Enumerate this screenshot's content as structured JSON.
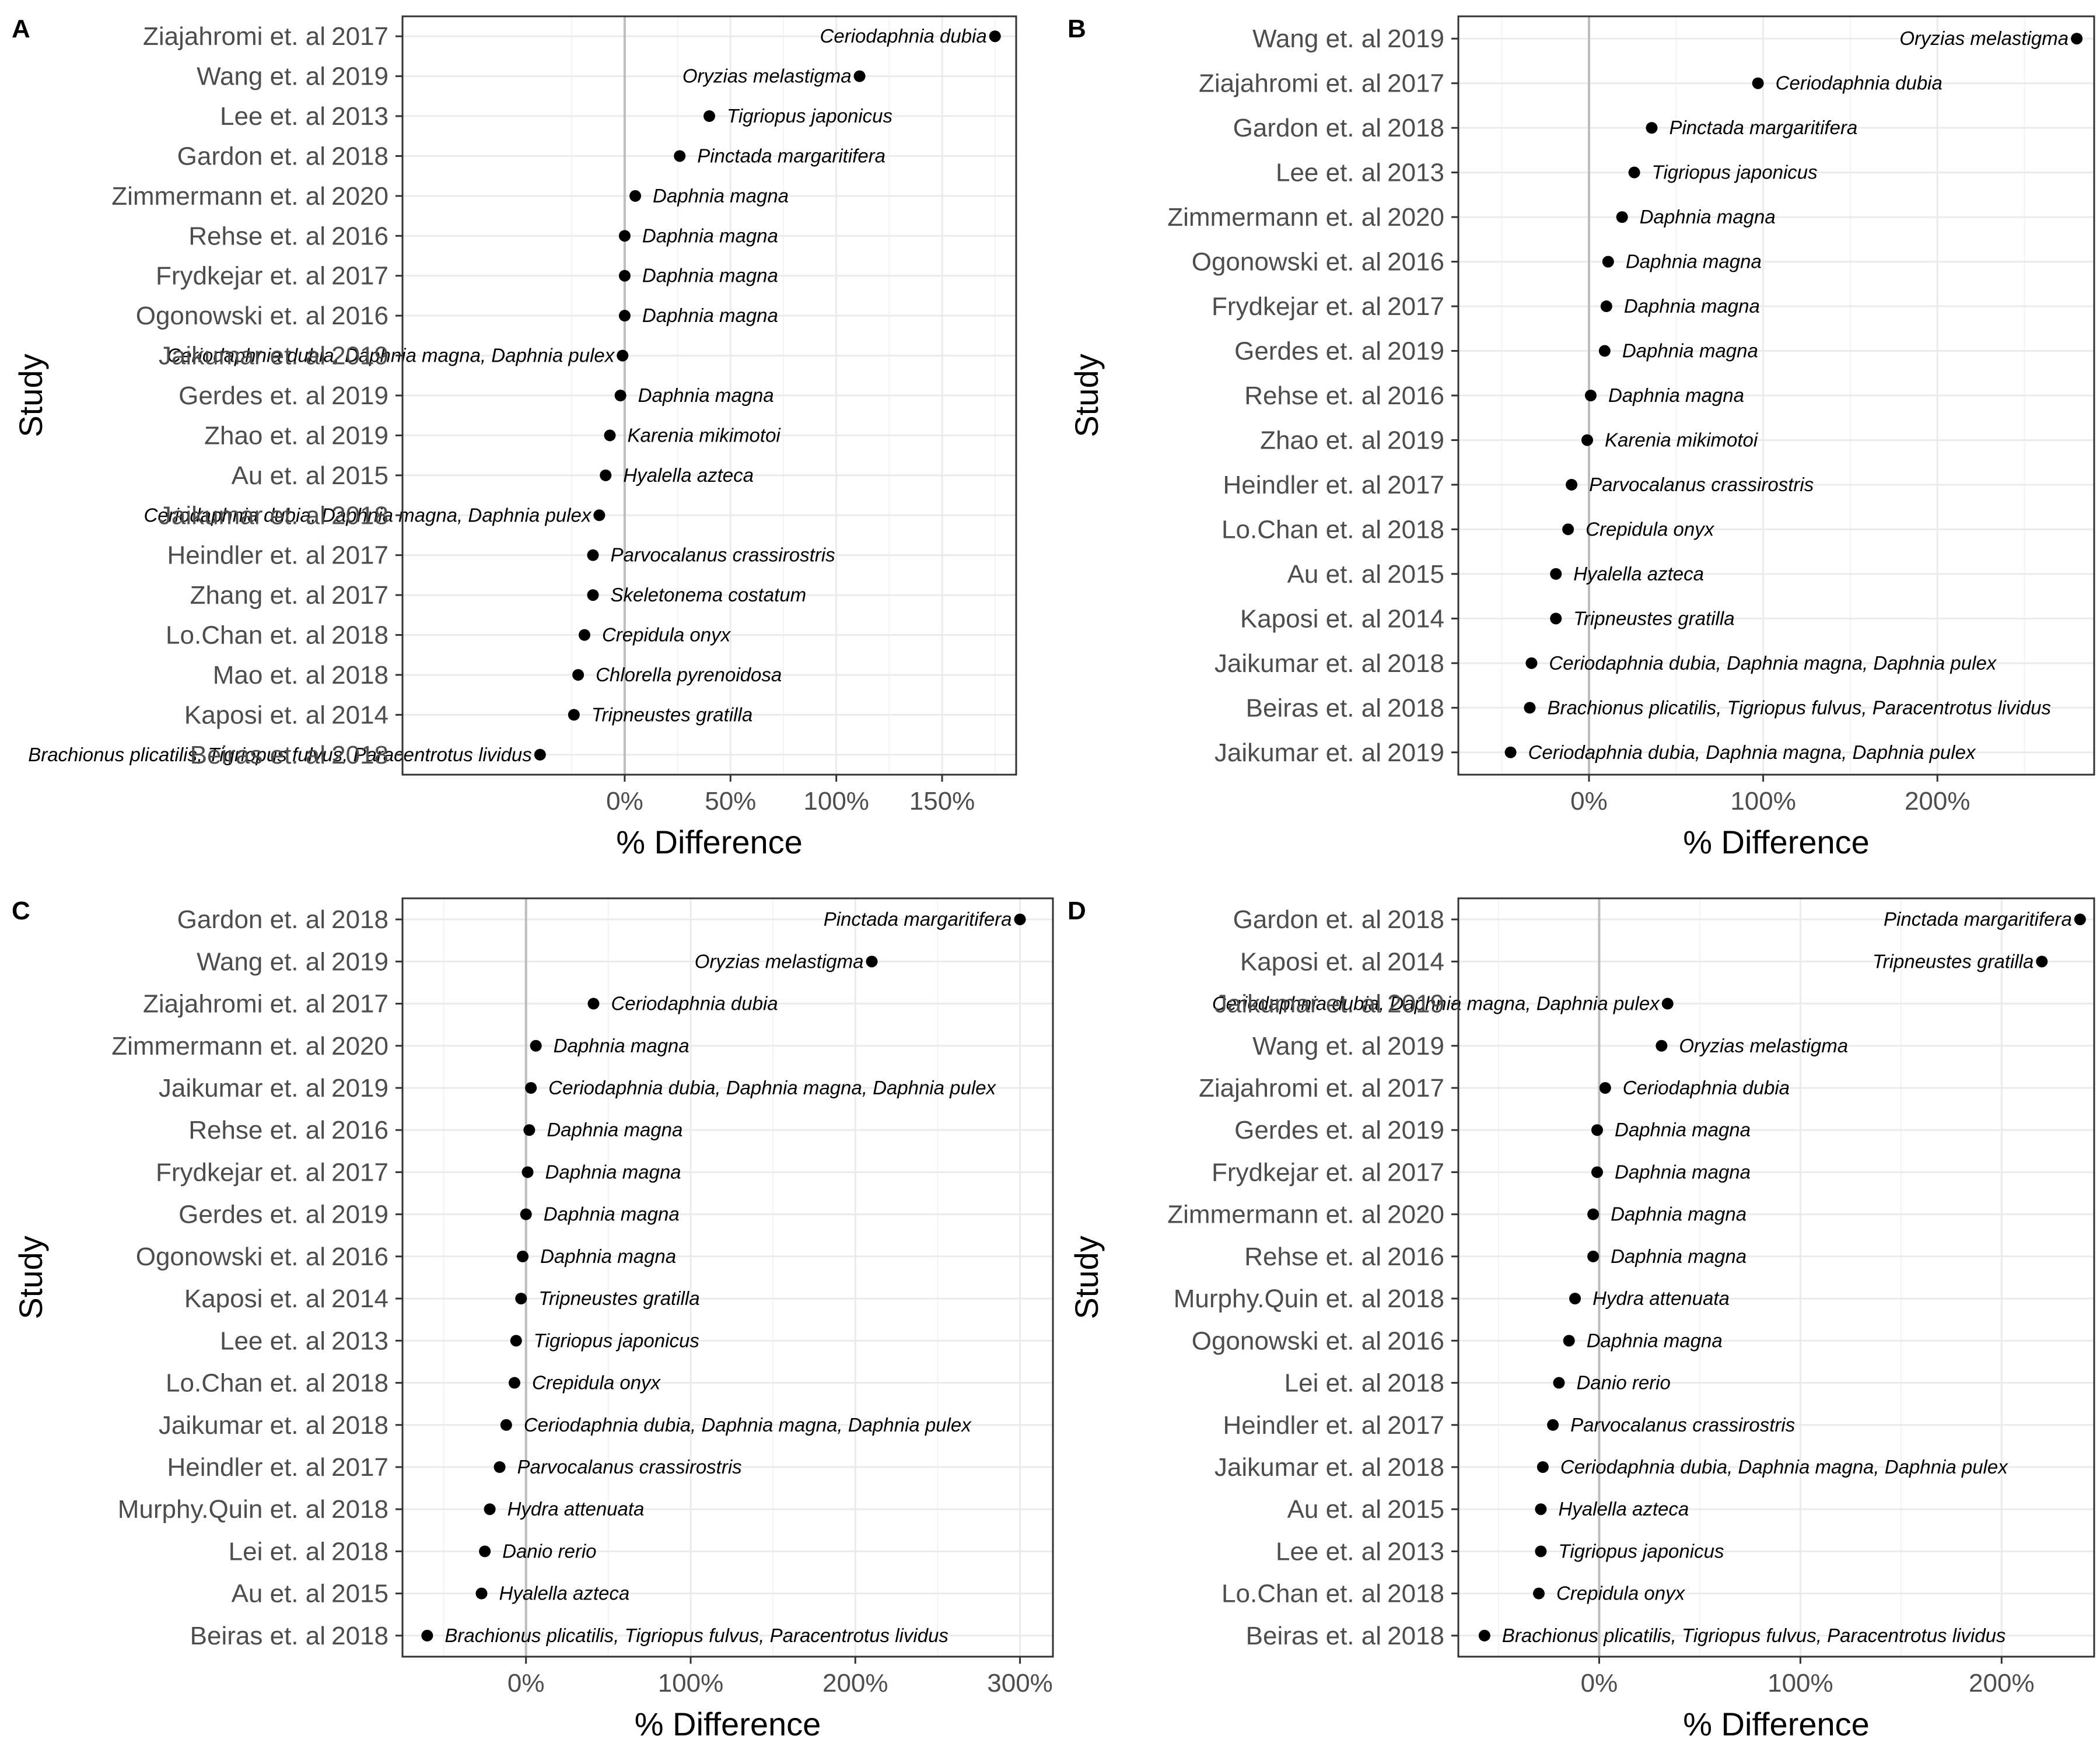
{
  "chart_data": [
    {
      "type": "scatter",
      "panel": "A",
      "xlabel": "% Difference",
      "ylabel": "Study",
      "xlim": [
        -105,
        185
      ],
      "xticks": [
        0,
        50,
        100,
        150
      ],
      "xtick_labels": [
        "0%",
        "50%",
        "100%",
        "150%"
      ],
      "points": [
        {
          "study": "Ziajahromi et. al",
          "year": "2017",
          "species": "Ceriodaphnia dubia",
          "x": 175
        },
        {
          "study": "Wang et. al",
          "year": "2019",
          "species": "Oryzias melastigma",
          "x": 111
        },
        {
          "study": "Lee et. al",
          "year": "2013",
          "species": "Tigriopus japonicus",
          "x": 40
        },
        {
          "study": "Gardon et. al",
          "year": "2018",
          "species": "Pinctada margaritifera",
          "x": 26
        },
        {
          "study": "Zimmermann et. al",
          "year": "2020",
          "species": "Daphnia magna",
          "x": 5
        },
        {
          "study": "Rehse et. al",
          "year": "2016",
          "species": "Daphnia magna",
          "x": 0
        },
        {
          "study": "Frydkejar et. al",
          "year": "2017",
          "species": "Daphnia magna",
          "x": 0
        },
        {
          "study": "Ogonowski et. al",
          "year": "2016",
          "species": "Daphnia magna",
          "x": 0
        },
        {
          "study": "Jaikumar et. al",
          "year": "2019",
          "species": "Ceriodaphnia dubia, Daphnia magna, Daphnia pulex",
          "x": -1
        },
        {
          "study": "Gerdes et. al",
          "year": "2019",
          "species": "Daphnia magna",
          "x": -2
        },
        {
          "study": "Zhao et. al",
          "year": "2019",
          "species": "Karenia mikimotoi",
          "x": -7
        },
        {
          "study": "Au et. al",
          "year": "2015",
          "species": "Hyalella azteca",
          "x": -9
        },
        {
          "study": "Jaikumar et. al",
          "year": "2018",
          "species": "Ceriodaphnia dubia, Daphnia magna, Daphnia pulex",
          "x": -12
        },
        {
          "study": "Heindler et. al",
          "year": "2017",
          "species": "Parvocalanus crassirostris",
          "x": -15
        },
        {
          "study": "Zhang et. al",
          "year": "2017",
          "species": "Skeletonema costatum",
          "x": -15
        },
        {
          "study": "Lo.Chan et. al",
          "year": "2018",
          "species": "Crepidula onyx",
          "x": -19
        },
        {
          "study": "Mao et. al",
          "year": "2018",
          "species": "Chlorella pyrenoidosa",
          "x": -22
        },
        {
          "study": "Kaposi et. al",
          "year": "2014",
          "species": "Tripneustes gratilla",
          "x": -24
        },
        {
          "study": "Beiras et. al",
          "year": "2018",
          "species": "Brachionus plicatilis, Tigriopus fulvus, Paracentrotus lividus",
          "x": -40
        }
      ]
    },
    {
      "type": "scatter",
      "panel": "B",
      "xlabel": "% Difference",
      "ylabel": "Study",
      "xlim": [
        -75,
        290
      ],
      "xticks": [
        0,
        100,
        200
      ],
      "xtick_labels": [
        "0%",
        "100%",
        "200%"
      ],
      "points": [
        {
          "study": "Wang et. al",
          "year": "2019",
          "species": "Oryzias melastigma",
          "x": 280
        },
        {
          "study": "Ziajahromi et. al",
          "year": "2017",
          "species": "Ceriodaphnia dubia",
          "x": 97
        },
        {
          "study": "Gardon et. al",
          "year": "2018",
          "species": "Pinctada margaritifera",
          "x": 36
        },
        {
          "study": "Lee et. al",
          "year": "2013",
          "species": "Tigriopus japonicus",
          "x": 26
        },
        {
          "study": "Zimmermann et. al",
          "year": "2020",
          "species": "Daphnia magna",
          "x": 19
        },
        {
          "study": "Ogonowski et. al",
          "year": "2016",
          "species": "Daphnia magna",
          "x": 11
        },
        {
          "study": "Frydkejar et. al",
          "year": "2017",
          "species": "Daphnia magna",
          "x": 10
        },
        {
          "study": "Gerdes et. al",
          "year": "2019",
          "species": "Daphnia magna",
          "x": 9
        },
        {
          "study": "Rehse et. al",
          "year": "2016",
          "species": "Daphnia magna",
          "x": 1
        },
        {
          "study": "Zhao et. al",
          "year": "2019",
          "species": "Karenia mikimotoi",
          "x": -1
        },
        {
          "study": "Heindler et. al",
          "year": "2017",
          "species": "Parvocalanus crassirostris",
          "x": -10
        },
        {
          "study": "Lo.Chan et. al",
          "year": "2018",
          "species": "Crepidula onyx",
          "x": -12
        },
        {
          "study": "Au et. al",
          "year": "2015",
          "species": "Hyalella azteca",
          "x": -19
        },
        {
          "study": "Kaposi et. al",
          "year": "2014",
          "species": "Tripneustes gratilla",
          "x": -19
        },
        {
          "study": "Jaikumar et. al",
          "year": "2018",
          "species": "Ceriodaphnia dubia, Daphnia magna, Daphnia pulex",
          "x": -33
        },
        {
          "study": "Beiras et. al",
          "year": "2018",
          "species": "Brachionus plicatilis, Tigriopus fulvus, Paracentrotus lividus",
          "x": -34
        },
        {
          "study": "Jaikumar et. al",
          "year": "2019",
          "species": "Ceriodaphnia dubia, Daphnia magna, Daphnia pulex",
          "x": -45
        }
      ]
    },
    {
      "type": "scatter",
      "panel": "C",
      "xlabel": "% Difference",
      "ylabel": "Study",
      "xlim": [
        -75,
        320
      ],
      "xticks": [
        0,
        100,
        200,
        300
      ],
      "xtick_labels": [
        "0%",
        "100%",
        "200%",
        "300%"
      ],
      "points": [
        {
          "study": "Gardon et. al",
          "year": "2018",
          "species": "Pinctada margaritifera",
          "x": 300
        },
        {
          "study": "Wang et. al",
          "year": "2019",
          "species": "Oryzias melastigma",
          "x": 210
        },
        {
          "study": "Ziajahromi et. al",
          "year": "2017",
          "species": "Ceriodaphnia dubia",
          "x": 41
        },
        {
          "study": "Zimmermann et. al",
          "year": "2020",
          "species": "Daphnia magna",
          "x": 6
        },
        {
          "study": "Jaikumar et. al",
          "year": "2019",
          "species": "Ceriodaphnia dubia, Daphnia magna, Daphnia pulex",
          "x": 3
        },
        {
          "study": "Rehse et. al",
          "year": "2016",
          "species": "Daphnia magna",
          "x": 2
        },
        {
          "study": "Frydkejar et. al",
          "year": "2017",
          "species": "Daphnia magna",
          "x": 1
        },
        {
          "study": "Gerdes et. al",
          "year": "2019",
          "species": "Daphnia magna",
          "x": 0
        },
        {
          "study": "Ogonowski et. al",
          "year": "2016",
          "species": "Daphnia magna",
          "x": -2
        },
        {
          "study": "Kaposi et. al",
          "year": "2014",
          "species": "Tripneustes gratilla",
          "x": -3
        },
        {
          "study": "Lee et. al",
          "year": "2013",
          "species": "Tigriopus japonicus",
          "x": -6
        },
        {
          "study": "Lo.Chan et. al",
          "year": "2018",
          "species": "Crepidula onyx",
          "x": -7
        },
        {
          "study": "Jaikumar et. al",
          "year": "2018",
          "species": "Ceriodaphnia dubia, Daphnia magna, Daphnia pulex",
          "x": -12
        },
        {
          "study": "Heindler et. al",
          "year": "2017",
          "species": "Parvocalanus crassirostris",
          "x": -16
        },
        {
          "study": "Murphy.Quin et. al",
          "year": "2018",
          "species": "Hydra attenuata",
          "x": -22
        },
        {
          "study": "Lei et. al",
          "year": "2018",
          "species": "Danio rerio",
          "x": -25
        },
        {
          "study": "Au et. al",
          "year": "2015",
          "species": "Hyalella azteca",
          "x": -27
        },
        {
          "study": "Beiras et. al",
          "year": "2018",
          "species": "Brachionus plicatilis, Tigriopus fulvus, Paracentrotus lividus",
          "x": -60
        }
      ]
    },
    {
      "type": "scatter",
      "panel": "D",
      "xlabel": "% Difference",
      "ylabel": "Study",
      "xlim": [
        -70,
        246
      ],
      "xticks": [
        0,
        100,
        200
      ],
      "xtick_labels": [
        "0%",
        "100%",
        "200%"
      ],
      "points": [
        {
          "study": "Gardon et. al",
          "year": "2018",
          "species": "Pinctada margaritifera",
          "x": 239
        },
        {
          "study": "Kaposi et. al",
          "year": "2014",
          "species": "Tripneustes gratilla",
          "x": 220
        },
        {
          "study": "Jaikumar et. al",
          "year": "2019",
          "species": "Ceriodaphnia dubia, Daphnia magna, Daphnia pulex",
          "x": 34
        },
        {
          "study": "Wang et. al",
          "year": "2019",
          "species": "Oryzias melastigma",
          "x": 31
        },
        {
          "study": "Ziajahromi et. al",
          "year": "2017",
          "species": "Ceriodaphnia dubia",
          "x": 3
        },
        {
          "study": "Gerdes et. al",
          "year": "2019",
          "species": "Daphnia magna",
          "x": -1
        },
        {
          "study": "Frydkejar et. al",
          "year": "2017",
          "species": "Daphnia magna",
          "x": -1
        },
        {
          "study": "Zimmermann et. al",
          "year": "2020",
          "species": "Daphnia magna",
          "x": -3
        },
        {
          "study": "Rehse et. al",
          "year": "2016",
          "species": "Daphnia magna",
          "x": -3
        },
        {
          "study": "Murphy.Quin et. al",
          "year": "2018",
          "species": "Hydra attenuata",
          "x": -12
        },
        {
          "study": "Ogonowski et. al",
          "year": "2016",
          "species": "Daphnia magna",
          "x": -15
        },
        {
          "study": "Lei et. al",
          "year": "2018",
          "species": "Danio rerio",
          "x": -20
        },
        {
          "study": "Heindler et. al",
          "year": "2017",
          "species": "Parvocalanus crassirostris",
          "x": -23
        },
        {
          "study": "Jaikumar et. al",
          "year": "2018",
          "species": "Ceriodaphnia dubia, Daphnia magna, Daphnia pulex",
          "x": -28
        },
        {
          "study": "Au et. al",
          "year": "2015",
          "species": "Hyalella azteca",
          "x": -29
        },
        {
          "study": "Lee et. al",
          "year": "2013",
          "species": "Tigriopus japonicus",
          "x": -29
        },
        {
          "study": "Lo.Chan et. al",
          "year": "2018",
          "species": "Crepidula onyx",
          "x": -30
        },
        {
          "study": "Beiras et. al",
          "year": "2018",
          "species": "Brachionus plicatilis, Tigriopus fulvus, Paracentrotus lividus",
          "x": -57
        }
      ]
    }
  ]
}
